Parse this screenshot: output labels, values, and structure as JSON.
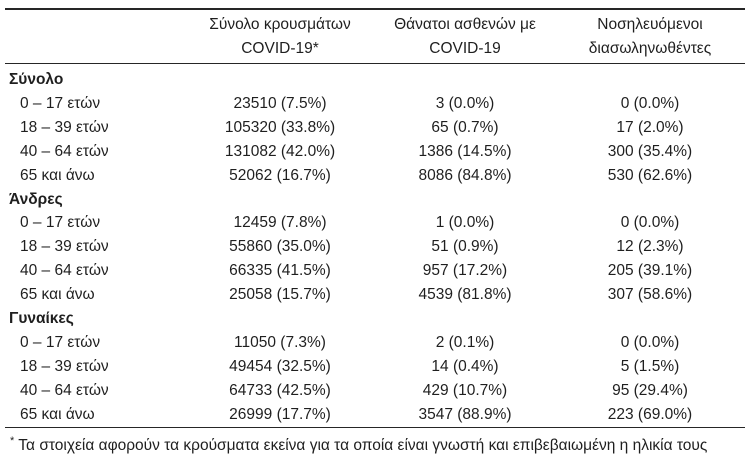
{
  "table": {
    "headers": [
      {
        "line1": "",
        "line2": ""
      },
      {
        "line1": "Σύνολο κρουσμάτων",
        "line2": "COVID-19*"
      },
      {
        "line1": "Θάνατοι ασθενών με",
        "line2": "COVID-19"
      },
      {
        "line1": "Νοσηλευόμενοι",
        "line2": "διασωληνωθέντες"
      }
    ],
    "groups": [
      {
        "label": "Σύνολο",
        "rows": [
          {
            "label": "0 – 17 ετών",
            "cases": "23510 (7.5%)",
            "deaths": "3 (0.0%)",
            "intubated": "0 (0.0%)"
          },
          {
            "label": "18 – 39 ετών",
            "cases": "105320 (33.8%)",
            "deaths": "65 (0.7%)",
            "intubated": "17 (2.0%)"
          },
          {
            "label": "40 – 64 ετών",
            "cases": "131082 (42.0%)",
            "deaths": "1386 (14.5%)",
            "intubated": "300 (35.4%)"
          },
          {
            "label": "65 και άνω",
            "cases": "52062 (16.7%)",
            "deaths": "8086 (84.8%)",
            "intubated": "530 (62.6%)"
          }
        ]
      },
      {
        "label": "Άνδρες",
        "rows": [
          {
            "label": "0 – 17 ετών",
            "cases": "12459 (7.8%)",
            "deaths": "1 (0.0%)",
            "intubated": "0 (0.0%)"
          },
          {
            "label": "18 – 39 ετών",
            "cases": "55860 (35.0%)",
            "deaths": "51 (0.9%)",
            "intubated": "12 (2.3%)"
          },
          {
            "label": "40 – 64 ετών",
            "cases": "66335 (41.5%)",
            "deaths": "957 (17.2%)",
            "intubated": "205 (39.1%)"
          },
          {
            "label": "65 και άνω",
            "cases": "25058 (15.7%)",
            "deaths": "4539 (81.8%)",
            "intubated": "307 (58.6%)"
          }
        ]
      },
      {
        "label": "Γυναίκες",
        "rows": [
          {
            "label": "0 – 17 ετών",
            "cases": "11050 (7.3%)",
            "deaths": "2 (0.1%)",
            "intubated": "0 (0.0%)"
          },
          {
            "label": "18 – 39 ετών",
            "cases": "49454 (32.5%)",
            "deaths": "14 (0.4%)",
            "intubated": "5 (1.5%)"
          },
          {
            "label": "40 – 64 ετών",
            "cases": "64733 (42.5%)",
            "deaths": "429 (10.7%)",
            "intubated": "95 (29.4%)"
          },
          {
            "label": "65 και άνω",
            "cases": "26999 (17.7%)",
            "deaths": "3547 (88.9%)",
            "intubated": "223 (69.0%)"
          }
        ]
      }
    ],
    "footnote": {
      "marker": "*",
      "text": "Τα στοιχεία αφορούν τα κρούσματα εκείνα για τα οποία είναι γνωστή και επιβεβαιωμένη η ηλικία τους"
    }
  },
  "colors": {
    "text": "#1f1f1f",
    "rule": "#262626",
    "background": "#ffffff"
  }
}
